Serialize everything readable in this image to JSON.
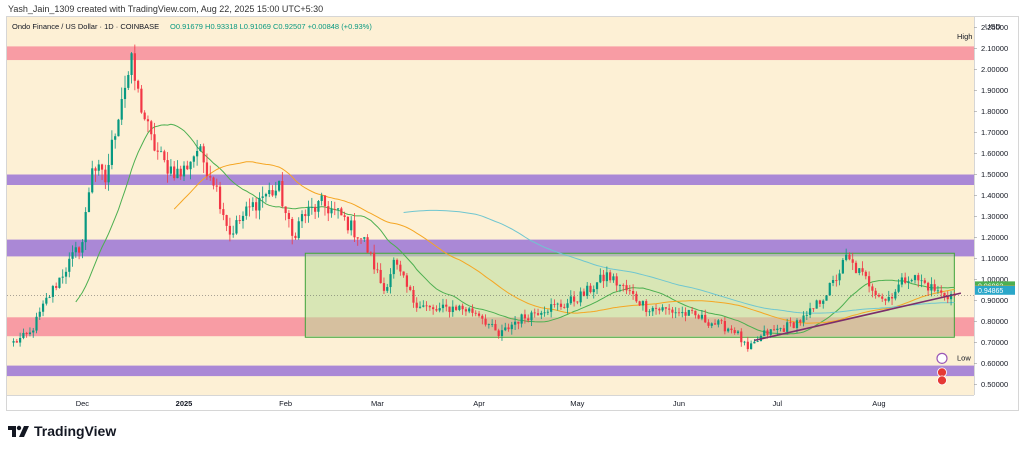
{
  "caption": "Yash_Jain_1309 created with TradingView.com, Aug 22, 2025 15:00 UTC+5:30",
  "brand": "TradingView",
  "colors": {
    "background": "#fdf0d5",
    "up": "#089981",
    "down": "#f23645",
    "zone_red": "#f7929f",
    "zone_purple": "#9b76d6",
    "range_fill": "#b9df9a",
    "range_border": "#3fa33a",
    "trendline": "#7c2d6b",
    "ma_fast": "#4caf50",
    "ma_mid": "#f5a623",
    "ma_slow": "#6fc6d0"
  },
  "chart_data": {
    "type": "candlestick",
    "symbol_header": {
      "name": "Ondo Finance / US Dollar · 1D · COINBASE",
      "open": "O0.91679",
      "high": "H0.93318",
      "low": "L0.91069",
      "close": "C0.92507",
      "change": "+0.00848 (+0.93%)"
    },
    "currency": "USD",
    "y_range": [
      0.45,
      2.25
    ],
    "y_ticks": [
      "2.20000",
      "2.10000",
      "2.00000",
      "1.90000",
      "1.80000",
      "1.70000",
      "1.60000",
      "1.50000",
      "1.40000",
      "1.30000",
      "1.20000",
      "1.10000",
      "1.00000",
      "0.90000",
      "0.80000",
      "0.70000",
      "0.60000",
      "0.50000"
    ],
    "x_ticks": [
      {
        "label": "Dec",
        "date": "2024-12-01",
        "bold": false
      },
      {
        "label": "2025",
        "date": "2025-01-01",
        "bold": true
      },
      {
        "label": "Feb",
        "date": "2025-02-01",
        "bold": false
      },
      {
        "label": "Mar",
        "date": "2025-03-01",
        "bold": false
      },
      {
        "label": "Apr",
        "date": "2025-04-01",
        "bold": false
      },
      {
        "label": "May",
        "date": "2025-05-01",
        "bold": false
      },
      {
        "label": "Jun",
        "date": "2025-06-01",
        "bold": false
      },
      {
        "label": "Jul",
        "date": "2025-07-01",
        "bold": false
      },
      {
        "label": "Aug",
        "date": "2025-08-01",
        "bold": false
      }
    ],
    "x_range": [
      "2024-11-08",
      "2025-08-30"
    ],
    "zones": [
      {
        "kind": "red",
        "low": 2.045,
        "high": 2.11
      },
      {
        "kind": "purple",
        "low": 1.45,
        "high": 1.5
      },
      {
        "kind": "purple",
        "low": 1.11,
        "high": 1.19
      },
      {
        "kind": "red",
        "low": 0.73,
        "high": 0.82
      },
      {
        "kind": "purple",
        "low": 0.54,
        "high": 0.59
      }
    ],
    "range_box": {
      "start": "2025-02-07",
      "end": "2025-08-24",
      "high": 1.125,
      "low": 0.725
    },
    "trendline": {
      "start_date": "2025-06-24",
      "start_price": 0.71,
      "end_date": "2025-08-26",
      "end_price": 0.935
    },
    "current_price": 0.925,
    "price_tags": [
      {
        "label": "0.96963",
        "value": 0.9696,
        "color": "#4caf50"
      },
      {
        "label": "0.95054",
        "value": 0.9505,
        "color": "#f5a623"
      },
      {
        "label": "0.94865",
        "value": 0.9487,
        "color": "#2aa7c9"
      }
    ],
    "high_marker": {
      "label": "High",
      "value": 2.145
    },
    "low_marker": {
      "label": "Low",
      "value": 0.615
    },
    "anchors": [
      [
        "2024-11-10",
        0.7
      ],
      [
        "2024-11-15",
        0.74
      ],
      [
        "2024-11-20",
        0.9
      ],
      [
        "2024-11-25",
        1.03
      ],
      [
        "2024-12-01",
        1.18
      ],
      [
        "2024-12-04",
        1.55
      ],
      [
        "2024-12-08",
        1.47
      ],
      [
        "2024-12-13",
        1.88
      ],
      [
        "2024-12-16",
        2.02
      ],
      [
        "2024-12-18",
        1.88
      ],
      [
        "2024-12-22",
        1.66
      ],
      [
        "2024-12-26",
        1.55
      ],
      [
        "2024-12-31",
        1.5
      ],
      [
        "2025-01-05",
        1.62
      ],
      [
        "2025-01-10",
        1.48
      ],
      [
        "2025-01-15",
        1.22
      ],
      [
        "2025-01-20",
        1.32
      ],
      [
        "2025-01-25",
        1.4
      ],
      [
        "2025-01-30",
        1.43
      ],
      [
        "2025-02-03",
        1.2
      ],
      [
        "2025-02-06",
        1.3
      ],
      [
        "2025-02-12",
        1.36
      ],
      [
        "2025-02-18",
        1.3
      ],
      [
        "2025-02-25",
        1.18
      ],
      [
        "2025-03-03",
        0.95
      ],
      [
        "2025-03-06",
        1.08
      ],
      [
        "2025-03-12",
        0.9
      ],
      [
        "2025-03-18",
        0.85
      ],
      [
        "2025-03-25",
        0.87
      ],
      [
        "2025-04-01",
        0.84
      ],
      [
        "2025-04-07",
        0.73
      ],
      [
        "2025-04-12",
        0.8
      ],
      [
        "2025-04-20",
        0.86
      ],
      [
        "2025-04-27",
        0.88
      ],
      [
        "2025-05-03",
        0.93
      ],
      [
        "2025-05-10",
        1.02
      ],
      [
        "2025-05-15",
        0.96
      ],
      [
        "2025-05-22",
        0.87
      ],
      [
        "2025-05-30",
        0.85
      ],
      [
        "2025-06-05",
        0.83
      ],
      [
        "2025-06-12",
        0.79
      ],
      [
        "2025-06-18",
        0.76
      ],
      [
        "2025-06-22",
        0.66
      ],
      [
        "2025-06-27",
        0.74
      ],
      [
        "2025-07-03",
        0.77
      ],
      [
        "2025-07-10",
        0.82
      ],
      [
        "2025-07-18",
        0.98
      ],
      [
        "2025-07-22",
        1.1
      ],
      [
        "2025-07-28",
        1.0
      ],
      [
        "2025-08-03",
        0.9
      ],
      [
        "2025-08-10",
        1.02
      ],
      [
        "2025-08-15",
        0.98
      ],
      [
        "2025-08-20",
        0.93
      ],
      [
        "2025-08-24",
        0.925
      ]
    ]
  }
}
